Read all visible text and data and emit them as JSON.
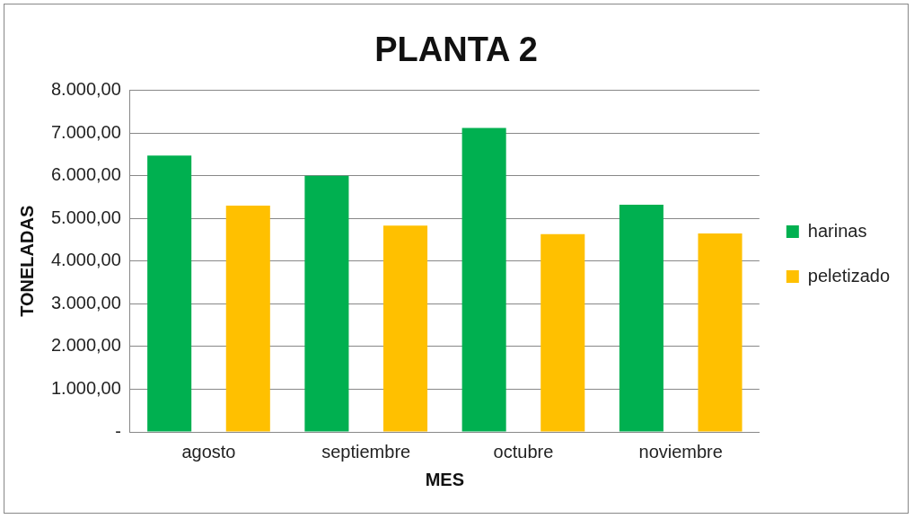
{
  "chart_data": {
    "type": "bar",
    "title": "PLANTA 2",
    "xlabel": "MES",
    "ylabel": "TONELADAS",
    "categories": [
      "agosto",
      "septiembre",
      "octubre",
      "noviembre"
    ],
    "series": [
      {
        "name": "harinas",
        "color": "#00b050",
        "values": [
          6470,
          6000,
          7120,
          5320
        ]
      },
      {
        "name": "peletizado",
        "color": "#ffc000",
        "values": [
          5300,
          4830,
          4630,
          4650
        ]
      }
    ],
    "ylim": [
      0,
      8000
    ],
    "yticks": [
      {
        "value": 0,
        "label": "-"
      },
      {
        "value": 1000,
        "label": "1.000,00"
      },
      {
        "value": 2000,
        "label": "2.000,00"
      },
      {
        "value": 3000,
        "label": "3.000,00"
      },
      {
        "value": 4000,
        "label": "4.000,00"
      },
      {
        "value": 5000,
        "label": "5.000,00"
      },
      {
        "value": 6000,
        "label": "6.000,00"
      },
      {
        "value": 7000,
        "label": "7.000,00"
      },
      {
        "value": 8000,
        "label": "8.000,00"
      }
    ],
    "grid": "y",
    "legend": "right"
  }
}
